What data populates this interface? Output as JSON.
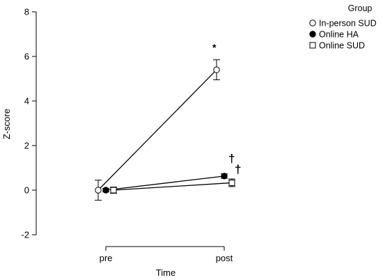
{
  "chart_data": {
    "type": "line",
    "xlabel": "Time",
    "ylabel": "Z-score",
    "categories": [
      "pre",
      "post"
    ],
    "ylim": [
      -2,
      8
    ],
    "yticks": [
      -2,
      0,
      2,
      4,
      6,
      8
    ],
    "legend": {
      "title": "Group",
      "placement": "top-right"
    },
    "series": [
      {
        "name": "In-person SUD",
        "marker": "open-circle",
        "values": [
          0.0,
          5.4
        ],
        "errors": [
          0.45,
          0.45
        ]
      },
      {
        "name": "Online HA",
        "marker": "filled-circle",
        "values": [
          0.0,
          0.63
        ],
        "errors": [
          0.08,
          0.1
        ]
      },
      {
        "name": "Online SUD",
        "marker": "open-square",
        "values": [
          0.0,
          0.33
        ],
        "errors": [
          0.14,
          0.17
        ]
      }
    ],
    "annotations": [
      {
        "text": "*",
        "series": 0,
        "category": "post"
      },
      {
        "text": "†",
        "series": 1,
        "category": "post"
      },
      {
        "text": "†",
        "series": 2,
        "category": "post"
      }
    ]
  }
}
